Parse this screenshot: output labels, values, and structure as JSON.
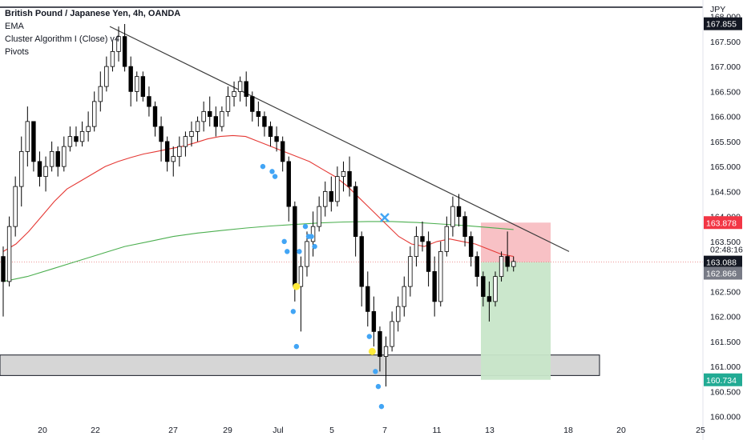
{
  "header": {
    "symbol_line": "British Pound / Japanese Yen, 4h, OANDA",
    "indicators": [
      "EMA",
      "Cluster Algorithm I (Close) v4",
      "Pivots"
    ],
    "currency": "JPY"
  },
  "colors": {
    "bull": "#ffffff",
    "bear": "#000000",
    "wick": "#000000",
    "ema_fast": "#e53935",
    "ema_slow": "#4caf50",
    "dots": "#42a5f5",
    "pivot": "#ffeb3b",
    "stop_zone": "#f7b6bb",
    "target_zone": "#c8e6c9",
    "support_box": "#d6d6d6",
    "trendline": "#3c3c3c"
  },
  "chart_data": {
    "type": "candlestick",
    "x_ticks": [
      "20",
      "22",
      "27",
      "29",
      "Jul",
      "5",
      "7",
      "11",
      "13",
      "18",
      "20",
      "25"
    ],
    "y_ticks": [
      "168.000",
      "167.500",
      "167.000",
      "166.500",
      "166.000",
      "165.500",
      "165.000",
      "164.500",
      "164.000",
      "163.500",
      "162.500",
      "162.000",
      "161.500",
      "161.000",
      "160.500",
      "160.000"
    ],
    "ylim": [
      159.93,
      168.17
    ],
    "price_tags": [
      {
        "label": "167.855",
        "value": 167.855,
        "color": "#131722"
      },
      {
        "label": "163.878",
        "value": 163.878,
        "color": "#f23645"
      },
      {
        "label": "163.088",
        "value": 163.088,
        "color": "#131722"
      },
      {
        "label": "162.866",
        "value": 162.866,
        "color": "#787b86"
      },
      {
        "label": "160.734",
        "value": 160.734,
        "color": "#22ab94"
      }
    ],
    "countdown": "02:48:16",
    "candles": [
      [
        163.2,
        163.4,
        162.0,
        162.7
      ],
      [
        162.7,
        164.0,
        162.6,
        163.8
      ],
      [
        163.8,
        164.8,
        163.6,
        164.6
      ],
      [
        164.6,
        165.6,
        164.2,
        165.3
      ],
      [
        165.3,
        166.2,
        165.0,
        165.9
      ],
      [
        165.9,
        165.9,
        164.9,
        165.1
      ],
      [
        165.1,
        165.3,
        164.6,
        164.8
      ],
      [
        164.8,
        165.2,
        164.5,
        165.0
      ],
      [
        165.0,
        165.5,
        164.9,
        165.3
      ],
      [
        165.3,
        165.4,
        164.8,
        165.0
      ],
      [
        165.0,
        165.6,
        164.9,
        165.4
      ],
      [
        165.4,
        165.8,
        165.3,
        165.6
      ],
      [
        165.6,
        165.8,
        165.4,
        165.5
      ],
      [
        165.5,
        165.9,
        165.4,
        165.7
      ],
      [
        165.7,
        166.1,
        165.5,
        165.8
      ],
      [
        165.8,
        166.5,
        165.7,
        166.3
      ],
      [
        166.3,
        166.9,
        166.1,
        166.6
      ],
      [
        166.6,
        167.2,
        166.5,
        167.0
      ],
      [
        167.0,
        167.5,
        166.9,
        167.3
      ],
      [
        167.3,
        167.8,
        167.1,
        167.6
      ],
      [
        167.6,
        167.85,
        166.9,
        167.0
      ],
      [
        167.0,
        167.2,
        166.2,
        166.5
      ],
      [
        166.5,
        166.9,
        166.3,
        166.8
      ],
      [
        166.8,
        166.9,
        166.3,
        166.4
      ],
      [
        166.4,
        166.6,
        166.0,
        166.2
      ],
      [
        166.2,
        166.3,
        165.6,
        165.8
      ],
      [
        165.8,
        166.0,
        165.1,
        165.5
      ],
      [
        165.5,
        165.6,
        164.9,
        165.1
      ],
      [
        165.1,
        165.4,
        164.8,
        165.2
      ],
      [
        165.2,
        165.6,
        165.0,
        165.4
      ],
      [
        165.4,
        165.7,
        165.2,
        165.6
      ],
      [
        165.6,
        165.9,
        165.4,
        165.7
      ],
      [
        165.7,
        166.0,
        165.5,
        165.9
      ],
      [
        165.9,
        166.3,
        165.7,
        166.1
      ],
      [
        166.1,
        166.4,
        165.8,
        166.0
      ],
      [
        166.0,
        166.2,
        165.6,
        165.8
      ],
      [
        165.8,
        166.2,
        165.7,
        166.1
      ],
      [
        166.1,
        166.6,
        166.0,
        166.4
      ],
      [
        166.4,
        166.7,
        166.2,
        166.5
      ],
      [
        166.5,
        166.8,
        166.3,
        166.7
      ],
      [
        166.7,
        166.9,
        166.2,
        166.4
      ],
      [
        166.4,
        166.5,
        165.9,
        166.1
      ],
      [
        166.1,
        166.3,
        165.8,
        166.0
      ],
      [
        166.0,
        166.1,
        165.6,
        165.8
      ],
      [
        165.8,
        165.9,
        165.4,
        165.6
      ],
      [
        165.6,
        165.8,
        165.3,
        165.5
      ],
      [
        165.5,
        165.6,
        164.9,
        165.1
      ],
      [
        165.1,
        165.2,
        163.9,
        164.2
      ],
      [
        164.2,
        164.3,
        162.3,
        162.6
      ],
      [
        162.6,
        163.2,
        161.7,
        163.0
      ],
      [
        163.0,
        163.7,
        162.8,
        163.5
      ],
      [
        163.5,
        164.1,
        163.2,
        163.8
      ],
      [
        163.8,
        164.4,
        163.7,
        164.2
      ],
      [
        164.2,
        164.7,
        164.0,
        164.5
      ],
      [
        164.5,
        164.8,
        164.1,
        164.3
      ],
      [
        164.3,
        165.0,
        164.2,
        164.8
      ],
      [
        164.8,
        165.1,
        164.5,
        164.9
      ],
      [
        164.9,
        165.2,
        164.4,
        164.6
      ],
      [
        164.6,
        164.7,
        163.2,
        163.6
      ],
      [
        163.6,
        163.7,
        162.2,
        162.6
      ],
      [
        162.6,
        162.9,
        161.8,
        162.1
      ],
      [
        162.1,
        162.4,
        161.4,
        161.7
      ],
      [
        161.7,
        161.8,
        160.9,
        161.2
      ],
      [
        161.2,
        161.6,
        160.6,
        161.4
      ],
      [
        161.4,
        162.1,
        161.3,
        161.9
      ],
      [
        161.9,
        162.4,
        161.7,
        162.2
      ],
      [
        162.2,
        162.8,
        162.0,
        162.6
      ],
      [
        162.6,
        163.4,
        162.4,
        163.2
      ],
      [
        163.2,
        163.8,
        163.0,
        163.6
      ],
      [
        163.6,
        163.9,
        163.3,
        163.5
      ],
      [
        163.5,
        163.7,
        162.6,
        162.9
      ],
      [
        162.9,
        163.2,
        162.0,
        162.3
      ],
      [
        162.3,
        163.5,
        162.2,
        163.3
      ],
      [
        163.3,
        164.0,
        163.2,
        163.8
      ],
      [
        163.8,
        164.4,
        163.6,
        164.2
      ],
      [
        164.2,
        164.45,
        163.8,
        164.0
      ],
      [
        164.0,
        164.1,
        163.4,
        163.6
      ],
      [
        163.6,
        163.7,
        163.0,
        163.2
      ],
      [
        163.2,
        163.3,
        162.6,
        162.8
      ],
      [
        162.8,
        162.9,
        162.2,
        162.4
      ],
      [
        162.4,
        162.7,
        161.9,
        162.3
      ],
      [
        162.3,
        162.9,
        162.2,
        162.8
      ],
      [
        162.8,
        163.3,
        162.7,
        163.2
      ],
      [
        163.2,
        163.7,
        162.9,
        163.0
      ],
      [
        163.0,
        163.2,
        162.9,
        163.1
      ]
    ],
    "ema_fast": [
      163.3,
      163.45,
      163.7,
      164.0,
      164.3,
      164.55,
      164.7,
      164.85,
      165.0,
      165.1,
      165.18,
      165.25,
      165.3,
      165.35,
      165.4,
      165.47,
      165.55,
      165.6,
      165.62,
      165.6,
      165.5,
      165.4,
      165.3,
      165.2,
      165.1,
      164.95,
      164.8,
      164.6,
      164.35,
      164.1,
      163.85,
      163.6,
      163.45,
      163.4,
      163.5,
      163.55,
      163.5,
      163.45,
      163.35,
      163.25,
      163.2
    ],
    "ema_slow": [
      162.7,
      162.8,
      162.95,
      163.1,
      163.25,
      163.4,
      163.5,
      163.6,
      163.67,
      163.72,
      163.77,
      163.81,
      163.84,
      163.87,
      163.89,
      163.9,
      163.9,
      163.88,
      163.85,
      163.82,
      163.78,
      163.74
    ],
    "dots": [
      [
        165.0,
        "blue"
      ],
      [
        164.9,
        "blue"
      ],
      [
        164.8,
        "blue"
      ],
      [
        163.5,
        "blue"
      ],
      [
        163.3,
        "blue"
      ],
      [
        162.6,
        "yellow"
      ],
      [
        162.1,
        "blue"
      ],
      [
        161.4,
        "blue"
      ],
      [
        163.3,
        "blue"
      ],
      [
        163.6,
        "blue"
      ],
      [
        163.8,
        "blue"
      ],
      [
        163.4,
        "blue"
      ],
      [
        163.6,
        "blue"
      ],
      [
        161.6,
        "blue"
      ],
      [
        161.3,
        "yellow"
      ],
      [
        160.9,
        "blue"
      ],
      [
        160.6,
        "blue"
      ],
      [
        160.2,
        "blue"
      ]
    ],
    "trendline": [
      [
        167.8,
        0
      ],
      [
        163.3,
        1
      ]
    ],
    "support_zone": [
      160.82,
      161.23
    ],
    "trade": {
      "entry": 163.088,
      "stop": 163.878,
      "target": 160.734
    }
  }
}
